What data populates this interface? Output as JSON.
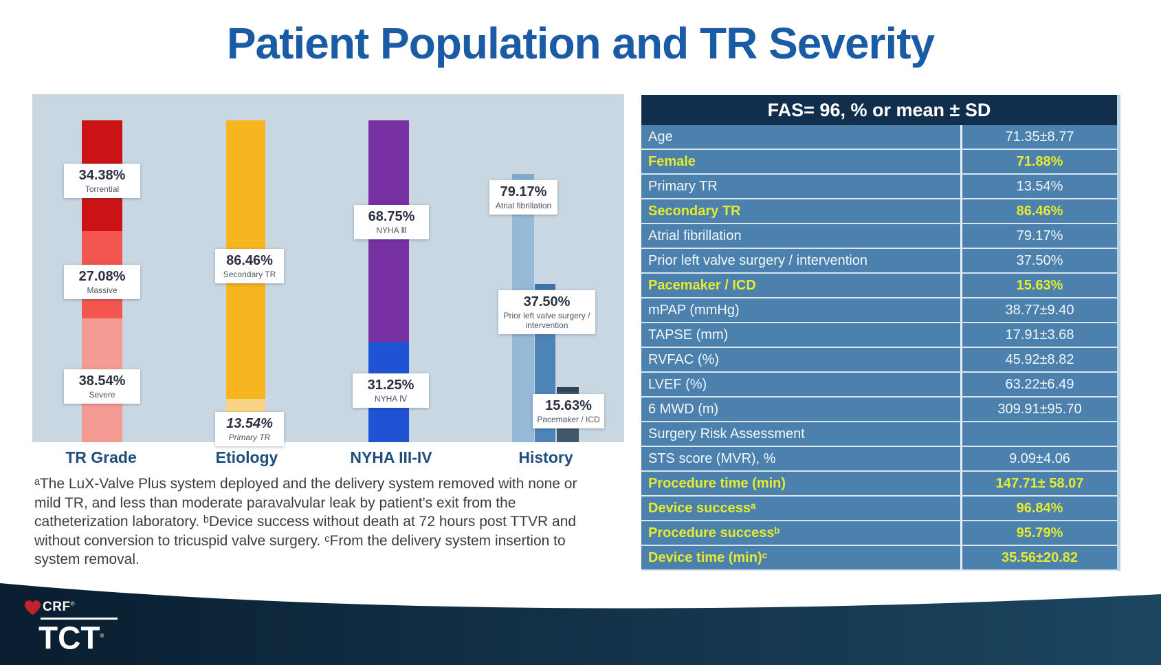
{
  "slide": {
    "title": "Patient Population and TR Severity",
    "title_color": "#1a5ba6"
  },
  "chart_data": {
    "type": "bar",
    "subtype": "stacked-percentage-columns",
    "panel_bg": "#c9d7e3",
    "ylim": [
      0,
      100
    ],
    "value_unit": "%",
    "legend": "none",
    "groups": [
      {
        "label": "TR Grade",
        "layout": "stacked",
        "segments": [
          {
            "name": "Torrential",
            "value": 34.38,
            "pct_label": "34.38%",
            "color": "#cb1316"
          },
          {
            "name": "Massive",
            "value": 27.08,
            "pct_label": "27.08%",
            "color": "#f2564f"
          },
          {
            "name": "Severe",
            "value": 38.54,
            "pct_label": "38.54%",
            "color": "#f49b94"
          }
        ]
      },
      {
        "label": "Etiology",
        "layout": "stacked",
        "segments": [
          {
            "name": "Secondary TR",
            "value": 86.46,
            "pct_label": "86.46%",
            "color": "#f7b51f"
          },
          {
            "name": "Primary TR",
            "value": 13.54,
            "pct_label": "13.54%",
            "color": "#f9d486"
          }
        ]
      },
      {
        "label": "NYHA III-IV",
        "layout": "stacked",
        "segments": [
          {
            "name": "NYHA Ⅲ",
            "value": 68.75,
            "pct_label": "68.75%",
            "color": "#7731a3"
          },
          {
            "name": "NYHA Ⅳ",
            "value": 31.25,
            "pct_label": "31.25%",
            "color": "#2052d4"
          }
        ]
      },
      {
        "label": "History",
        "layout": "grouped",
        "segments": [
          {
            "name": "Atrial fibrillation",
            "value": 79.17,
            "pct_label": "79.17%",
            "color": "#96b9d8",
            "cap_color": "#7fa8cd"
          },
          {
            "name": "Prior left valve surgery / intervention",
            "value": 37.5,
            "pct_label": "37.50%",
            "color": "#4c84b8",
            "cap_color": "#3d74a8"
          },
          {
            "name": "Pacemaker / ICD",
            "value": 15.63,
            "pct_label": "15.63%",
            "color": "#40596b",
            "cap_color": "#2e4557"
          }
        ]
      }
    ]
  },
  "table": {
    "header": "FAS= 96, % or mean ± SD",
    "header_bg": "#112f4d",
    "row_bg": "#4c81ae",
    "highlight_color": "#e5eb2e",
    "rows": [
      {
        "label": "Age",
        "value": "71.35±8.77",
        "highlight": false
      },
      {
        "label": "Female",
        "value": "71.88%",
        "highlight": true
      },
      {
        "label": "Primary TR",
        "value": "13.54%",
        "highlight": false
      },
      {
        "label": "Secondary TR",
        "value": "86.46%",
        "highlight": true
      },
      {
        "label": "Atrial fibrillation",
        "value": "79.17%",
        "highlight": false
      },
      {
        "label": "Prior left valve surgery / intervention",
        "value": "37.50%",
        "highlight": false
      },
      {
        "label": "Pacemaker / ICD",
        "value": "15.63%",
        "highlight": true
      },
      {
        "label": "mPAP (mmHg)",
        "value": "38.77±9.40",
        "highlight": false
      },
      {
        "label": "TAPSE (mm)",
        "value": "17.91±3.68",
        "highlight": false
      },
      {
        "label": "RVFAC (%)",
        "value": "45.92±8.82",
        "highlight": false
      },
      {
        "label": "LVEF (%)",
        "value": "63.22±6.49",
        "highlight": false
      },
      {
        "label": "6 MWD (m)",
        "value": "309.91±95.70",
        "highlight": false
      },
      {
        "label": "Surgery Risk Assessment",
        "value": "",
        "highlight": false
      },
      {
        "label": "STS score (MVR), %",
        "value": "9.09±4.06",
        "highlight": false
      },
      {
        "label": "Procedure time (min)",
        "value": "147.71± 58.07",
        "highlight": true
      },
      {
        "label": "Device successᵃ",
        "value": "96.84%",
        "highlight": true
      },
      {
        "label": "Procedure successᵇ",
        "value": "95.79%",
        "highlight": true
      },
      {
        "label": "Device time (min)ᶜ",
        "value": "35.56±20.82",
        "highlight": true
      }
    ]
  },
  "footnote": {
    "text": "ᵃThe LuX-Valve Plus system deployed and the delivery system removed with none or mild TR, and less than moderate paravalvular leak by patient's exit from the catheterization laboratory. ᵇDevice success without death at 72 hours post TTVR and without conversion to tricuspid valve surgery. ᶜFrom the delivery system insertion to system removal."
  },
  "footer": {
    "crf_label": "CRF",
    "tct_label": "TCT",
    "reg_mark": "®",
    "bg_left": "#091e30",
    "bg_right": "#1c4560",
    "accent_red": "#c5202e"
  }
}
